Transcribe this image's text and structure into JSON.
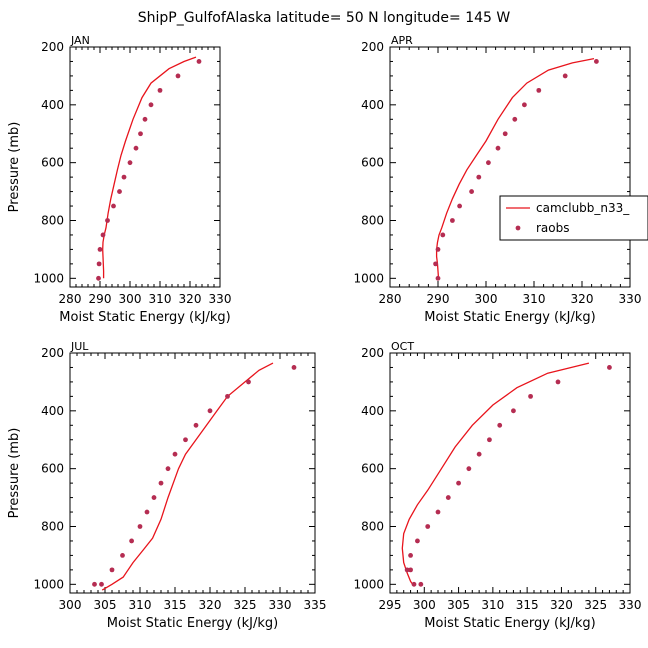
{
  "figure": {
    "title": "ShipP_GulfofAlaska  latitude= 50 N longitude= 145 W"
  },
  "colors": {
    "model_line": "#e8141c",
    "obs_marker": "#b52d52",
    "axis": "#000000"
  },
  "legend": {
    "model_label": "camclubb_n33_",
    "obs_label": "raobs"
  },
  "chart_data": [
    {
      "type": "line",
      "panel_label": "JAN",
      "title": "",
      "xlabel": "Moist Static Energy (kJ/kg)",
      "ylabel": "Pressure (mb)",
      "xlim": [
        280,
        330
      ],
      "ylim": [
        1030,
        200
      ],
      "xticks": [
        "280",
        "290",
        "300",
        "310",
        "320",
        "330"
      ],
      "yticks": [
        "200",
        "400",
        "600",
        "800",
        "1000"
      ],
      "model": {
        "name": "camclubb_n33_",
        "x": [
          322.0,
          318.0,
          313.0,
          307.0,
          304.0,
          301.0,
          298.5,
          297.0,
          295.8,
          294.7,
          293.6,
          292.7,
          292.0,
          291.4,
          291.0,
          290.9,
          291.0,
          291.1,
          291.2,
          291.2
        ],
        "y": [
          235,
          250,
          275,
          325,
          375,
          450,
          525,
          575,
          625,
          675,
          725,
          775,
          825,
          850,
          875,
          900,
          925,
          950,
          975,
          1000
        ]
      },
      "obs": {
        "name": "raobs",
        "x": [
          323.0,
          316.0,
          310.0,
          307.0,
          305.0,
          303.5,
          302.0,
          300.0,
          298.0,
          296.5,
          294.5,
          292.5,
          291.0,
          290.0,
          289.7,
          289.5
        ],
        "y": [
          250,
          300,
          350,
          400,
          450,
          500,
          550,
          600,
          650,
          700,
          750,
          800,
          850,
          900,
          950,
          1000
        ]
      }
    },
    {
      "type": "line",
      "panel_label": "APR",
      "title": "",
      "xlabel": "Moist Static Energy (kJ/kg)",
      "ylabel": "",
      "xlim": [
        280,
        330
      ],
      "ylim": [
        1030,
        200
      ],
      "xticks": [
        "280",
        "290",
        "300",
        "310",
        "320",
        "330"
      ],
      "yticks": [
        "200",
        "400",
        "600",
        "800",
        "1000"
      ],
      "show_legend": true,
      "model": {
        "name": "camclubb_n33_",
        "x": [
          322.5,
          318.0,
          313.0,
          308.5,
          305.5,
          302.5,
          300.0,
          298.0,
          296.0,
          294.4,
          293.0,
          291.8,
          290.8,
          290.2,
          289.9,
          289.7,
          289.7,
          289.9,
          290.0,
          290.1
        ],
        "y": [
          240,
          255,
          280,
          325,
          375,
          450,
          525,
          575,
          625,
          675,
          725,
          775,
          825,
          850,
          875,
          900,
          925,
          950,
          975,
          1000
        ]
      },
      "obs": {
        "name": "raobs",
        "x": [
          323.0,
          316.5,
          311.0,
          308.0,
          306.0,
          304.0,
          302.5,
          300.5,
          298.5,
          297.0,
          294.5,
          293.0,
          291.0,
          290.0,
          289.5,
          290.0
        ],
        "y": [
          250,
          300,
          350,
          400,
          450,
          500,
          550,
          600,
          650,
          700,
          750,
          800,
          850,
          900,
          950,
          1000
        ]
      }
    },
    {
      "type": "line",
      "panel_label": "JUL",
      "title": "",
      "xlabel": "Moist Static Energy (kJ/kg)",
      "ylabel": "Pressure (mb)",
      "xlim": [
        300,
        335
      ],
      "ylim": [
        1030,
        200
      ],
      "xticks": [
        "300",
        "305",
        "310",
        "315",
        "320",
        "325",
        "330",
        "335"
      ],
      "yticks": [
        "200",
        "400",
        "600",
        "800",
        "1000"
      ],
      "model": {
        "name": "camclubb_n33_",
        "x": [
          329.0,
          327.0,
          325.0,
          322.5,
          321.0,
          319.5,
          318.0,
          316.5,
          315.5,
          314.0,
          313.0,
          311.8,
          310.5,
          309.0,
          307.6,
          306.0,
          304.6
        ],
        "y": [
          235,
          260,
          300,
          350,
          400,
          450,
          500,
          550,
          600,
          700,
          775,
          840,
          880,
          925,
          975,
          1000,
          1020
        ]
      },
      "obs": {
        "name": "raobs",
        "x": [
          332.0,
          325.5,
          322.5,
          320.0,
          318.0,
          316.5,
          315.0,
          314.0,
          313.0,
          312.0,
          311.0,
          310.0,
          308.8,
          307.5,
          306.0,
          304.5,
          303.5
        ],
        "y": [
          250,
          300,
          350,
          400,
          450,
          500,
          550,
          600,
          650,
          700,
          750,
          800,
          850,
          900,
          950,
          1000,
          1000
        ]
      }
    },
    {
      "type": "line",
      "panel_label": "OCT",
      "title": "",
      "xlabel": "Moist Static Energy (kJ/kg)",
      "ylabel": "",
      "xlim": [
        295,
        330
      ],
      "ylim": [
        1030,
        200
      ],
      "xticks": [
        "295",
        "300",
        "305",
        "310",
        "315",
        "320",
        "325",
        "330"
      ],
      "yticks": [
        "200",
        "400",
        "600",
        "800",
        "1000"
      ],
      "model": {
        "name": "camclubb_n33_",
        "x": [
          324.0,
          318.0,
          313.5,
          310.0,
          307.0,
          304.5,
          302.5,
          300.5,
          299.0,
          297.8,
          297.0,
          296.8,
          297.0,
          297.5,
          298.0,
          298.3
        ],
        "y": [
          235,
          270,
          320,
          380,
          450,
          525,
          600,
          675,
          725,
          775,
          825,
          875,
          925,
          960,
          990,
          1000
        ]
      },
      "obs": {
        "name": "raobs",
        "x": [
          327.0,
          319.5,
          315.5,
          313.0,
          311.0,
          309.5,
          308.0,
          306.5,
          305.0,
          303.5,
          302.0,
          300.5,
          299.0,
          298.0,
          297.5,
          298.0,
          298.5,
          299.5
        ],
        "y": [
          250,
          300,
          350,
          400,
          450,
          500,
          550,
          600,
          650,
          700,
          750,
          800,
          850,
          900,
          950,
          950,
          1000,
          1000
        ]
      }
    }
  ]
}
